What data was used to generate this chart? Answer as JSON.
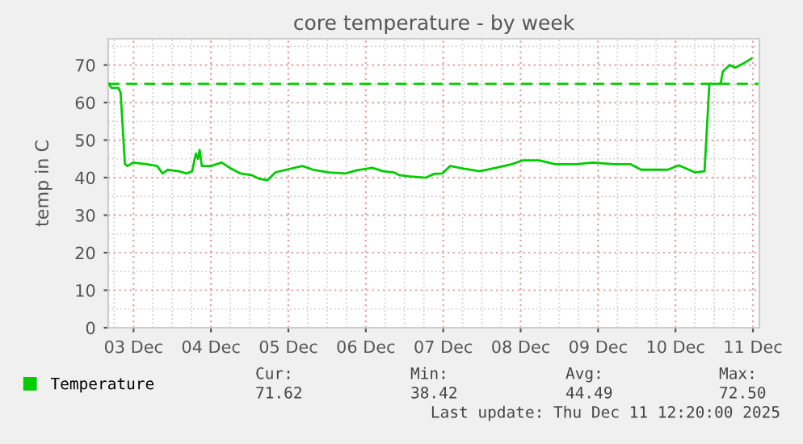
{
  "chart_data": {
    "type": "line",
    "title": "core temperature - by week",
    "ylabel": "temp in C",
    "x": [
      "2025-12-03T04:20",
      "2025-12-03T05:10",
      "2025-12-03T07:20",
      "2025-12-03T08:00",
      "2025-12-03T09:20",
      "2025-12-03T10:10",
      "2025-12-03T11:50",
      "2025-12-03T16:00",
      "2025-12-03T19:20",
      "2025-12-03T21:00",
      "2025-12-03T22:40",
      "2025-12-04T02:00",
      "2025-12-04T04:30",
      "2025-12-04T06:10",
      "2025-12-04T07:20",
      "2025-12-04T08:00",
      "2025-12-04T08:30",
      "2025-12-04T09:10",
      "2025-12-04T12:00",
      "2025-12-04T15:20",
      "2025-12-04T17:50",
      "2025-12-04T21:10",
      "2025-12-05T00:30",
      "2025-12-05T03:00",
      "2025-12-05T05:30",
      "2025-12-05T08:00",
      "2025-12-05T11:20",
      "2025-12-05T16:20",
      "2025-12-05T19:40",
      "2025-12-06T00:40",
      "2025-12-06T05:40",
      "2025-12-06T09:00",
      "2025-12-06T14:00",
      "2025-12-06T17:20",
      "2025-12-06T20:40",
      "2025-12-06T22:20",
      "2025-12-07T01:40",
      "2025-12-07T06:40",
      "2025-12-07T09:10",
      "2025-12-07T11:40",
      "2025-12-07T14:10",
      "2025-12-07T18:20",
      "2025-12-07T23:20",
      "2025-12-08T04:20",
      "2025-12-08T09:20",
      "2025-12-08T12:40",
      "2025-12-08T17:40",
      "2025-12-08T22:40",
      "2025-12-09T05:20",
      "2025-12-09T10:20",
      "2025-12-09T17:00",
      "2025-12-09T22:00",
      "2025-12-10T01:20",
      "2025-12-10T06:20",
      "2025-12-10T09:40",
      "2025-12-10T13:00",
      "2025-12-10T18:00",
      "2025-12-10T21:00",
      "2025-12-10T22:30",
      "2025-12-10T23:30",
      "2025-12-11T02:00",
      "2025-12-11T02:40",
      "2025-12-11T04:50",
      "2025-12-11T06:30",
      "2025-12-11T09:00",
      "2025-12-11T11:30"
    ],
    "series": [
      {
        "name": "Temperature",
        "color": "#00cc00",
        "values": [
          65.0,
          63.9,
          63.9,
          62.6,
          43.6,
          43.1,
          44.0,
          43.6,
          43.1,
          41.1,
          42.1,
          41.7,
          41.1,
          41.7,
          46.4,
          45.0,
          47.4,
          43.1,
          43.1,
          44.0,
          42.6,
          41.1,
          40.7,
          39.7,
          39.3,
          41.4,
          42.1,
          43.1,
          42.1,
          41.4,
          41.1,
          41.9,
          42.6,
          41.7,
          41.4,
          40.7,
          40.3,
          40.0,
          41.0,
          41.1,
          43.1,
          42.4,
          41.7,
          42.6,
          43.6,
          44.6,
          44.6,
          43.6,
          43.6,
          44.0,
          43.6,
          43.6,
          42.1,
          42.1,
          42.1,
          43.3,
          41.4,
          41.7,
          65.0,
          65.0,
          65.0,
          68.3,
          70.0,
          69.3,
          70.4,
          71.7
        ]
      }
    ],
    "xlim": [
      "2025-12-03T04:10",
      "2025-12-11T14:00"
    ],
    "xticks": [
      {
        "value": "2025-12-03T12:00",
        "label": "03 Dec"
      },
      {
        "value": "2025-12-04T12:00",
        "label": "04 Dec"
      },
      {
        "value": "2025-12-05T12:00",
        "label": "05 Dec"
      },
      {
        "value": "2025-12-06T12:00",
        "label": "06 Dec"
      },
      {
        "value": "2025-12-07T12:00",
        "label": "07 Dec"
      },
      {
        "value": "2025-12-08T12:00",
        "label": "08 Dec"
      },
      {
        "value": "2025-12-09T12:00",
        "label": "09 Dec"
      },
      {
        "value": "2025-12-10T12:00",
        "label": "10 Dec"
      },
      {
        "value": "2025-12-11T12:00",
        "label": "11 Dec"
      }
    ],
    "ylim": [
      0,
      77
    ],
    "yticks": [
      0,
      10,
      20,
      30,
      40,
      50,
      60,
      70
    ],
    "ref_lines": [
      {
        "axis": "y",
        "value": 65,
        "color": "#00cc00",
        "line_style": "dashed"
      }
    ],
    "grid": true,
    "legend": "bottom",
    "line_style": "solid",
    "annotations": [
      "Cur:",
      "Min:",
      "Avg:",
      "Max:",
      "71.62",
      "38.42",
      "44.49",
      "72.50",
      "Last update: Thu Dec 11 12:20:00 2025"
    ]
  }
}
